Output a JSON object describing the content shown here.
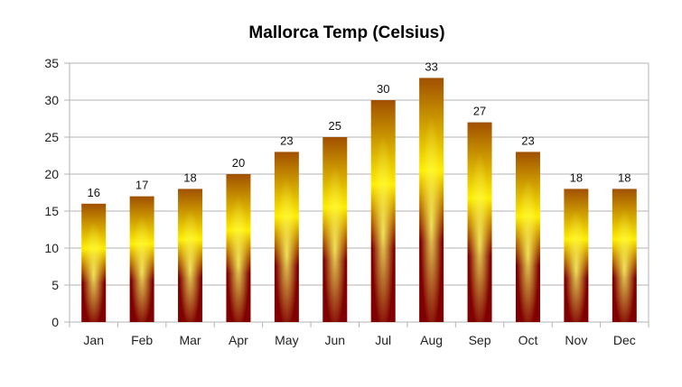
{
  "chart_data": {
    "type": "bar",
    "title": "Mallorca Temp (Celsius)",
    "xlabel": "",
    "ylabel": "",
    "categories": [
      "Jan",
      "Feb",
      "Mar",
      "Apr",
      "May",
      "Jun",
      "Jul",
      "Aug",
      "Sep",
      "Oct",
      "Nov",
      "Dec"
    ],
    "values": [
      16,
      17,
      18,
      20,
      23,
      25,
      30,
      33,
      27,
      23,
      18,
      18
    ],
    "ylim": [
      0,
      35
    ],
    "yticks": [
      "0",
      "5",
      "10",
      "15",
      "20",
      "25",
      "30",
      "35"
    ],
    "grid": true,
    "legend": "none",
    "data_labels": true,
    "colors": {
      "bar_bottom": "#800000",
      "bar_mid": "#ffee00",
      "bar_top": "#a05000",
      "grid": "#b3b3b3"
    }
  }
}
